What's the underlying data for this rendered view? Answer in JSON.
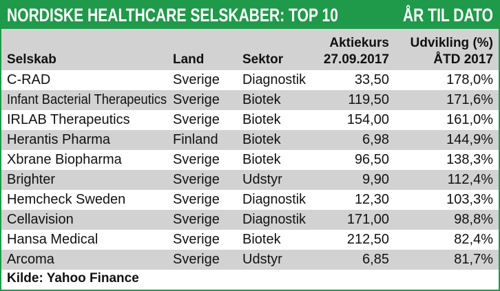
{
  "header": {
    "title": "NORDISKE HEALTHCARE SELSKABER: TOP 10",
    "badge": "ÅR TIL DATO"
  },
  "chart_data": {
    "type": "table",
    "columns": {
      "name": "Selskab",
      "land": "Land",
      "sektor": "Sektor",
      "kurs_line1": "Aktiekurs",
      "kurs_line2": "27.09.2017",
      "udv_line1": "Udvikling (%)",
      "udv_line2": "ÅTD 2017"
    },
    "rows": [
      {
        "name": "C-RAD",
        "land": "Sverige",
        "sektor": "Diagnostik",
        "kurs": "33,50",
        "udv": "178,0%"
      },
      {
        "name": "Infant Bacterial Therapeutics",
        "land": "Sverige",
        "sektor": "Biotek",
        "kurs": "119,50",
        "udv": "171,6%"
      },
      {
        "name": "IRLAB Therapeutics",
        "land": "Sverige",
        "sektor": "Biotek",
        "kurs": "154,00",
        "udv": "161,0%"
      },
      {
        "name": "Herantis Pharma",
        "land": "Finland",
        "sektor": "Biotek",
        "kurs": "6,98",
        "udv": "144,9%"
      },
      {
        "name": "Xbrane Biopharma",
        "land": "Sverige",
        "sektor": "Biotek",
        "kurs": "96,50",
        "udv": "138,3%"
      },
      {
        "name": "Brighter",
        "land": "Sverige",
        "sektor": "Udstyr",
        "kurs": "9,90",
        "udv": "112,4%"
      },
      {
        "name": "Hemcheck Sweden",
        "land": "Sverige",
        "sektor": "Diagnostik",
        "kurs": "12,30",
        "udv": "103,3%"
      },
      {
        "name": "Cellavision",
        "land": "Sverige",
        "sektor": "Diagnostik",
        "kurs": "171,00",
        "udv": "98,8%"
      },
      {
        "name": "Hansa Medical",
        "land": "Sverige",
        "sektor": "Biotek",
        "kurs": "212,50",
        "udv": "82,4%"
      },
      {
        "name": "Arcoma",
        "land": "Sverige",
        "sektor": "Udstyr",
        "kurs": "6,85",
        "udv": "81,7%"
      }
    ]
  },
  "footer": {
    "source": "Kilde: Yahoo Finance"
  },
  "colors": {
    "accent": "#1f9a4a",
    "shade": "#d2d2d2"
  }
}
